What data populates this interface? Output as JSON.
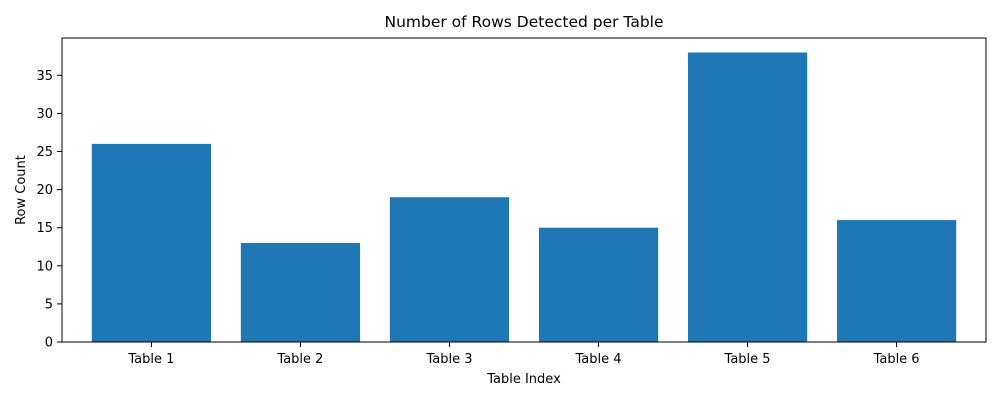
{
  "chart_data": {
    "type": "bar",
    "title": "Number of Rows Detected per Table",
    "xlabel": "Table Index",
    "ylabel": "Row Count",
    "categories": [
      "Table 1",
      "Table 2",
      "Table 3",
      "Table 4",
      "Table 5",
      "Table 6"
    ],
    "values": [
      26,
      13,
      19,
      15,
      38,
      16
    ],
    "ylim": [
      0,
      39.9
    ],
    "yticks": [
      0,
      5,
      10,
      15,
      20,
      25,
      30,
      35
    ],
    "bar_color": "#1f77b4",
    "grid": false,
    "legend": false
  }
}
